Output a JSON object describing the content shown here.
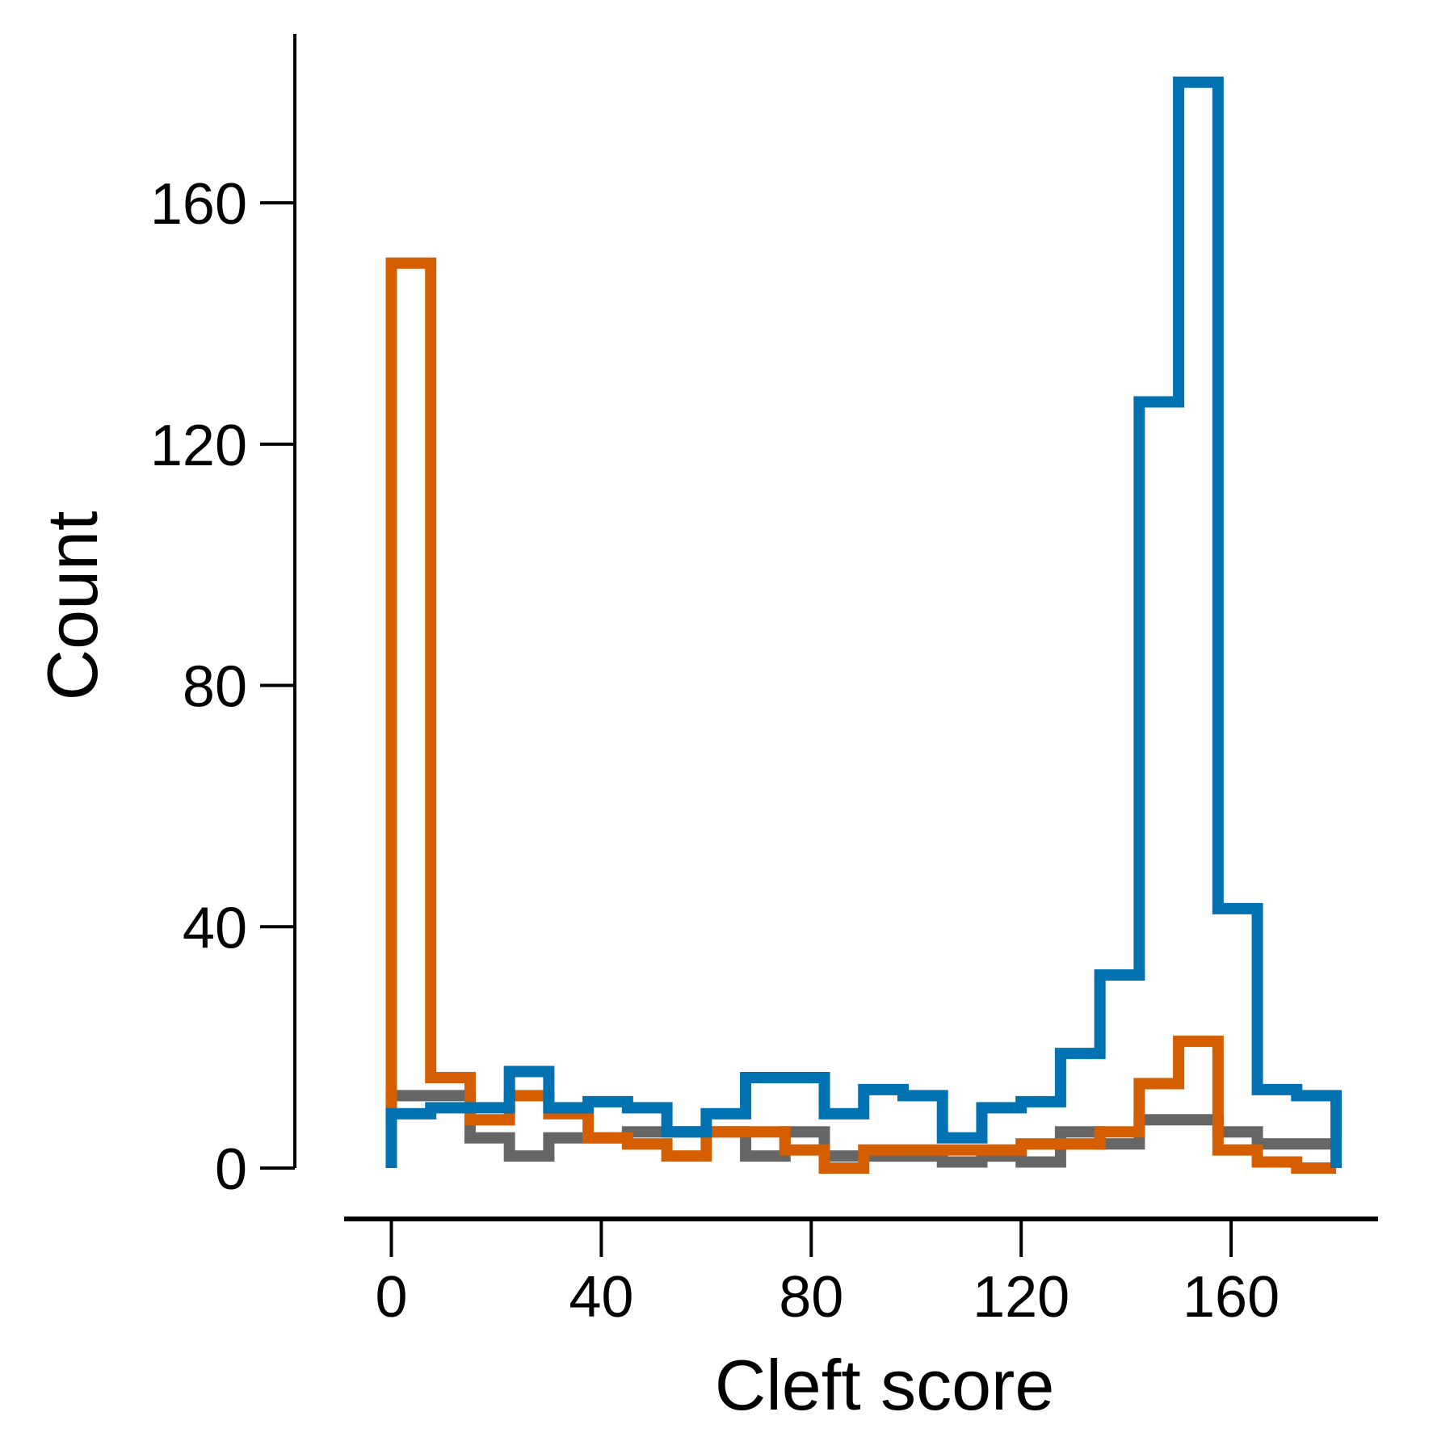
{
  "chart_data": {
    "type": "histogram",
    "xlabel": "Cleft score",
    "ylabel": "Count",
    "xlim": [
      -9,
      188
    ],
    "ylim": [
      0,
      188
    ],
    "x_ticks": [
      0,
      40,
      80,
      120,
      160
    ],
    "y_ticks": [
      0,
      40,
      80,
      120,
      160
    ],
    "bin_edges": [
      0,
      7.5,
      15,
      22.5,
      30,
      37.5,
      45,
      52.5,
      60,
      67.5,
      75,
      82.5,
      90,
      97.5,
      105,
      112.5,
      120,
      127.5,
      135,
      142.5,
      150,
      157.5,
      165,
      172.5,
      180
    ],
    "series": [
      {
        "color": "#666666",
        "values": [
          12,
          12,
          5,
          2,
          5,
          5,
          6,
          6,
          6,
          2,
          6,
          2,
          2,
          2,
          1,
          2,
          1,
          6,
          4,
          8,
          8,
          6,
          4,
          4
        ]
      },
      {
        "color": "#d45e00",
        "values": [
          150,
          15,
          8,
          12,
          9,
          5,
          4,
          2,
          6,
          6,
          3,
          0,
          3,
          3,
          3,
          3,
          4,
          4,
          6,
          14,
          21,
          3,
          1,
          0
        ]
      },
      {
        "color": "#0072b2",
        "values": [
          9,
          10,
          10,
          16,
          10,
          11,
          10,
          6,
          9,
          15,
          15,
          9,
          13,
          12,
          5,
          10,
          11,
          19,
          32,
          127,
          180,
          43,
          13,
          12
        ]
      }
    ],
    "grid": false,
    "legend": "none"
  }
}
